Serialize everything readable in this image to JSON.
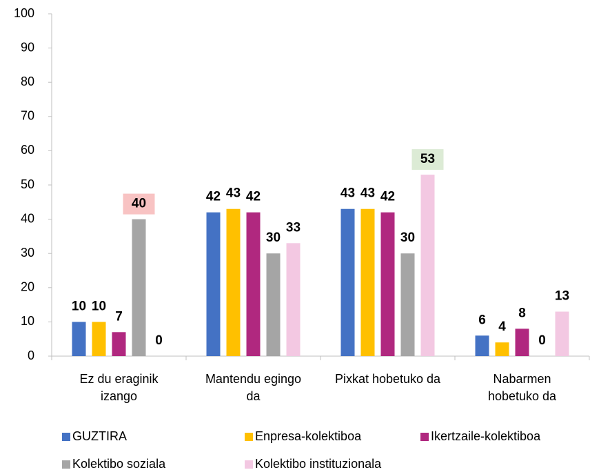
{
  "chart_data": {
    "type": "bar",
    "categories": [
      [
        "Ez du eraginik",
        "izango"
      ],
      [
        "Mantendu egingo",
        "da"
      ],
      [
        "Pixkat hobetuko da"
      ],
      [
        "Nabarmen",
        "hobetuko da"
      ]
    ],
    "series": [
      {
        "name": "GUZTIRA",
        "color": "#4472c4",
        "values": [
          10,
          42,
          43,
          6
        ]
      },
      {
        "name": "Enpresa-kolektiboa",
        "color": "#ffc000",
        "values": [
          10,
          43,
          43,
          4
        ]
      },
      {
        "name": "Ikertzaile-kolektiboa",
        "color": "#b0287f",
        "values": [
          7,
          42,
          42,
          8
        ]
      },
      {
        "name": "Kolektibo soziala",
        "color": "#a5a5a5",
        "values": [
          40,
          30,
          30,
          0
        ],
        "label_highlight": [
          "#f8c3c3",
          null,
          null,
          null
        ]
      },
      {
        "name": "Kolektibo instituzionala",
        "color": "#f3c8e2",
        "values": [
          0,
          33,
          53,
          13
        ],
        "label_highlight": [
          null,
          null,
          "#dcebd5",
          null
        ]
      }
    ],
    "ylim": [
      0,
      100
    ],
    "yticks": [
      0,
      10,
      20,
      30,
      40,
      50,
      60,
      70,
      80,
      90,
      100
    ],
    "grid": false
  }
}
